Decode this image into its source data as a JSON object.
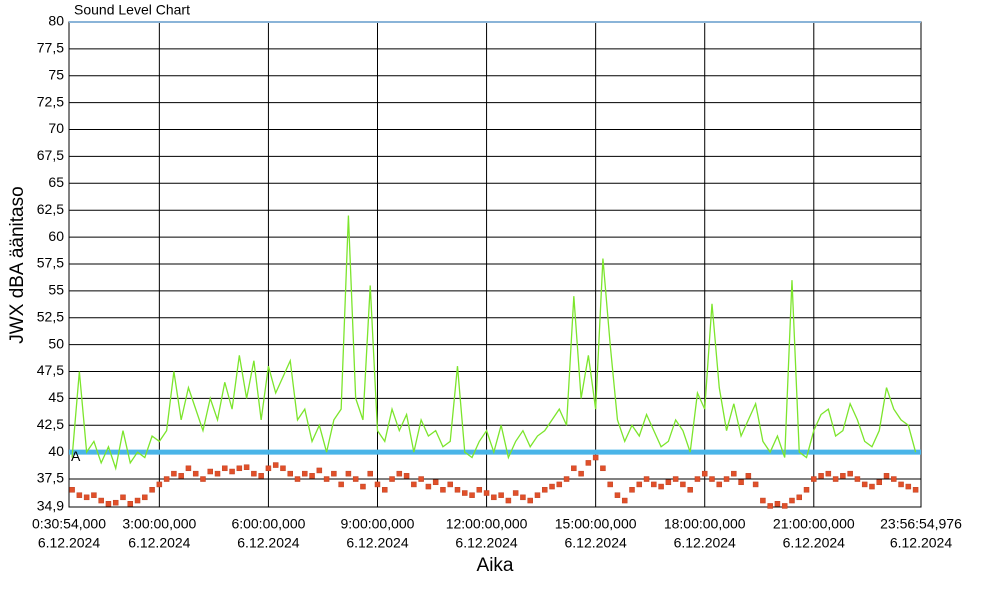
{
  "chart_data": {
    "type": "line",
    "title": "Sound Level Chart",
    "y_label": "JWX dBA äänitaso",
    "x_label": "Aika",
    "xlim": [
      0.515,
      23.9486
    ],
    "xticks": [
      {
        "value": 0.515,
        "label": "0:30:54,000",
        "date": "6.12.2024"
      },
      {
        "value": 3,
        "label": "3:00:00,000",
        "date": "6.12.2024"
      },
      {
        "value": 6,
        "label": "6:00:00,000",
        "date": "6.12.2024"
      },
      {
        "value": 9,
        "label": "9:00:00,000",
        "date": "6.12.2024"
      },
      {
        "value": 12,
        "label": "12:00:00,000",
        "date": "6.12.2024"
      },
      {
        "value": 15,
        "label": "15:00:00,000",
        "date": "6.12.2024"
      },
      {
        "value": 18,
        "label": "18:00:00,000",
        "date": "6.12.2024"
      },
      {
        "value": 21,
        "label": "21:00:00,000",
        "date": "6.12.2024"
      },
      {
        "value": 23.9486,
        "label": "23:56:54,976",
        "date": "6.12.2024"
      }
    ],
    "ylim": [
      34.9,
      80
    ],
    "yticks": [
      {
        "value": 34.9,
        "label": "34,9"
      },
      {
        "value": 37.5,
        "label": "37,5"
      },
      40,
      {
        "value": 42.5,
        "label": "42,5"
      },
      45,
      {
        "value": 47.5,
        "label": "47,5"
      },
      50,
      {
        "value": 52.5,
        "label": "52,5"
      },
      55,
      {
        "value": 57.5,
        "label": "57,5"
      },
      60,
      {
        "value": 62.5,
        "label": "62,5"
      },
      65,
      {
        "value": 67.5,
        "label": "67,5"
      },
      70,
      {
        "value": 72.5,
        "label": "72,5"
      },
      75,
      {
        "value": 77.5,
        "label": "77,5"
      },
      80
    ],
    "grid": true,
    "threshold": {
      "value": 40,
      "label": "A",
      "color": "#4ab5e8"
    },
    "x": [
      0.6,
      0.8,
      1.0,
      1.2,
      1.4,
      1.6,
      1.8,
      2.0,
      2.2,
      2.4,
      2.6,
      2.8,
      3.0,
      3.2,
      3.4,
      3.6,
      3.8,
      4.0,
      4.2,
      4.4,
      4.6,
      4.8,
      5.0,
      5.2,
      5.4,
      5.6,
      5.8,
      6.0,
      6.2,
      6.4,
      6.6,
      6.8,
      7.0,
      7.2,
      7.4,
      7.6,
      7.8,
      8.0,
      8.2,
      8.4,
      8.6,
      8.8,
      9.0,
      9.2,
      9.4,
      9.6,
      9.8,
      10.0,
      10.2,
      10.4,
      10.6,
      10.8,
      11.0,
      11.2,
      11.4,
      11.6,
      11.8,
      12.0,
      12.2,
      12.4,
      12.6,
      12.8,
      13.0,
      13.2,
      13.4,
      13.6,
      13.8,
      14.0,
      14.2,
      14.4,
      14.6,
      14.8,
      15.0,
      15.2,
      15.4,
      15.6,
      15.8,
      16.0,
      16.2,
      16.4,
      16.6,
      16.8,
      17.0,
      17.2,
      17.4,
      17.6,
      17.8,
      18.0,
      18.2,
      18.4,
      18.6,
      18.8,
      19.0,
      19.2,
      19.4,
      19.6,
      19.8,
      20.0,
      20.2,
      20.4,
      20.6,
      20.8,
      21.0,
      21.2,
      21.4,
      21.6,
      21.8,
      22.0,
      22.2,
      22.4,
      22.6,
      22.8,
      23.0,
      23.2,
      23.4,
      23.6,
      23.8
    ],
    "series": [
      {
        "color": "#7ce52c",
        "style": "line",
        "values": [
          39.5,
          47.5,
          40,
          41,
          39,
          40.5,
          38.5,
          42,
          39,
          40,
          39.5,
          41.5,
          41,
          42,
          47.5,
          43,
          46,
          44,
          42,
          45,
          43,
          46.5,
          44,
          49,
          45,
          48.5,
          43,
          48,
          45.5,
          47,
          48.5,
          43,
          44,
          41,
          42.5,
          40,
          43,
          44,
          62,
          45,
          43,
          55.5,
          42,
          41,
          44,
          42,
          43.5,
          40,
          43,
          41.5,
          42,
          40.5,
          41,
          48,
          40,
          39.5,
          41,
          42,
          40,
          42.5,
          39.5,
          41,
          42,
          40.5,
          41.5,
          42,
          43,
          44,
          42.5,
          54.5,
          45,
          49,
          44,
          58,
          50,
          43,
          41,
          42.5,
          41.5,
          43.5,
          42,
          40.5,
          41,
          43,
          42,
          40,
          45.5,
          44,
          53.8,
          46,
          42,
          44.5,
          41.5,
          43,
          44.5,
          41,
          40,
          41.5,
          39.5,
          56,
          40,
          39.5,
          42,
          43.5,
          44,
          41.5,
          42,
          44.5,
          43,
          41,
          40.5,
          42,
          46,
          44,
          43,
          42.5,
          40
        ]
      },
      {
        "color": "#e0502a",
        "style": "markers",
        "values": [
          36.5,
          36,
          35.8,
          36,
          35.5,
          35.2,
          35.3,
          35.8,
          35.2,
          35.5,
          35.8,
          36.5,
          37,
          37.5,
          38,
          37.8,
          38.5,
          38,
          37.5,
          38.2,
          38,
          38.5,
          38.2,
          38.5,
          38.6,
          38,
          37.8,
          38.5,
          38.8,
          38.5,
          38,
          37.5,
          38,
          37.8,
          38.3,
          37.5,
          38,
          37,
          38,
          37.5,
          36.8,
          38,
          37,
          36.5,
          37.5,
          38,
          37.8,
          37,
          37.5,
          36.8,
          37.2,
          36.5,
          37,
          36.5,
          36.2,
          36,
          36.5,
          36.2,
          35.8,
          36,
          35.5,
          36.2,
          35.8,
          35.5,
          36,
          36.5,
          36.8,
          37,
          37.5,
          38.5,
          38,
          39,
          39.5,
          38.5,
          37,
          36,
          35.5,
          36.5,
          37,
          37.5,
          37,
          36.8,
          37.2,
          37.5,
          37,
          36.5,
          37.5,
          38,
          37.5,
          37,
          37.5,
          38,
          37.2,
          37.8,
          37,
          35.5,
          35,
          35.2,
          35,
          35.5,
          35.8,
          36.5,
          37.5,
          37.8,
          38,
          37.5,
          37.8,
          38,
          37.5,
          37,
          36.8,
          37.2,
          37.8,
          37.5,
          37,
          36.8,
          36.5
        ]
      }
    ]
  }
}
